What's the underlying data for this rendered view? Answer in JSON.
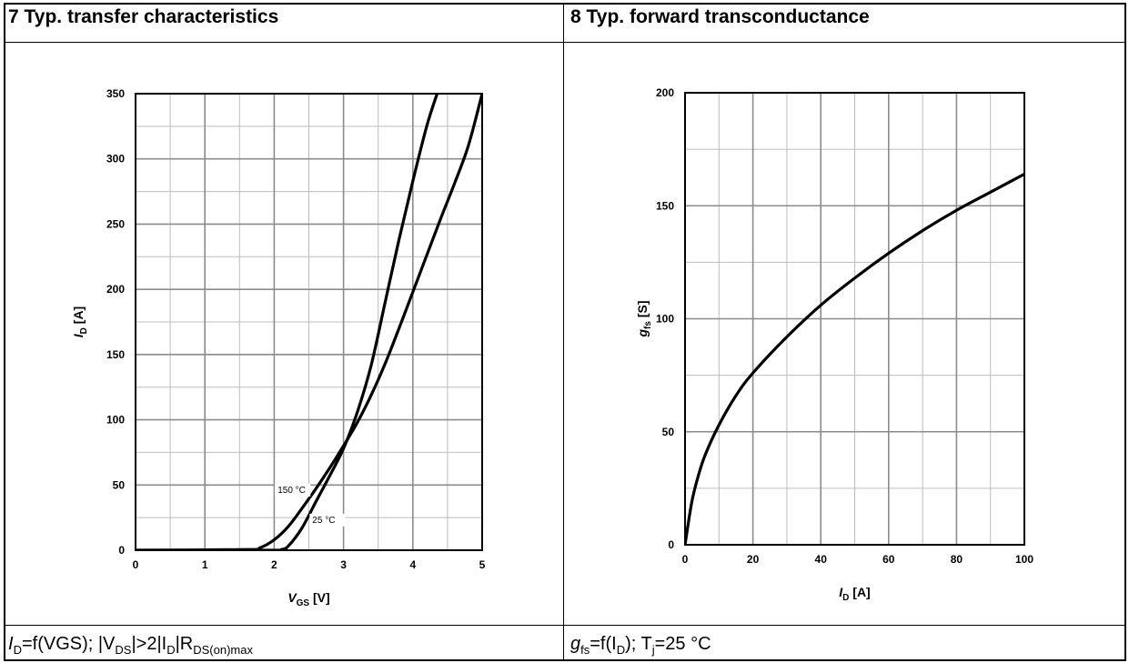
{
  "panels": {
    "left": {
      "title": "7 Typ. transfer characteristics",
      "caption": {
        "p1": "I",
        "p1_sub": "D",
        "p2": "=f(VGS); |V",
        "p2_sub": "DS",
        "p3": "|>2|I",
        "p3_sub": "D",
        "p4": "|R",
        "p4_sub": "DS(on)max"
      }
    },
    "right": {
      "title": "8 Typ. forward transconductance",
      "caption": {
        "p1": "g",
        "p1_sub": "fs",
        "p2": "=f(I",
        "p2_sub": "D",
        "p3": ");  T",
        "p3_sub": "j",
        "p4": "=25 °C"
      }
    }
  },
  "chart_data": [
    {
      "type": "line",
      "xlabel": {
        "main": "V",
        "sub": "GS",
        "unit": " [V]"
      },
      "ylabel": {
        "main": "I",
        "sub": "D",
        "unit": " [A]"
      },
      "xlim": [
        0,
        5
      ],
      "ylim": [
        0,
        350
      ],
      "xticks": [
        0,
        1,
        2,
        3,
        4,
        5
      ],
      "yticks": [
        0,
        50,
        100,
        150,
        200,
        250,
        300,
        350
      ],
      "grid": true,
      "series": [
        {
          "name": "150 °C",
          "x": [
            0,
            1.6,
            1.8,
            2.0,
            2.2,
            2.4,
            2.6,
            2.8,
            3.0,
            3.2,
            3.4,
            3.6,
            3.8,
            4.0,
            4.2,
            4.4,
            4.6,
            4.8,
            5.0
          ],
          "y": [
            0,
            0.5,
            2,
            8,
            18,
            32,
            47,
            63,
            80,
            98,
            119,
            143,
            170,
            198,
            226,
            254,
            281,
            310,
            350
          ]
        },
        {
          "name": "25 °C",
          "x": [
            0,
            2.0,
            2.1,
            2.2,
            2.4,
            2.6,
            2.8,
            3.0,
            3.2,
            3.4,
            3.6,
            3.8,
            4.0,
            4.2,
            4.35
          ],
          "y": [
            0,
            0,
            0.5,
            3,
            17,
            37,
            57,
            78,
            106,
            142,
            190,
            238,
            283,
            325,
            350
          ]
        }
      ]
    },
    {
      "type": "line",
      "xlabel": {
        "main": "I",
        "sub": "D",
        "unit": " [A]"
      },
      "ylabel": {
        "main": "g",
        "sub": "fs",
        "unit": " [S]"
      },
      "xlim": [
        0,
        100
      ],
      "ylim": [
        0,
        200
      ],
      "xticks": [
        0,
        20,
        40,
        60,
        80,
        100
      ],
      "yticks": [
        0,
        50,
        100,
        150,
        200
      ],
      "grid": true,
      "series": [
        {
          "name": "",
          "x": [
            0,
            2,
            4,
            6,
            10,
            15,
            20,
            30,
            40,
            50,
            60,
            70,
            80,
            90,
            100
          ],
          "y": [
            0,
            19,
            31,
            40,
            53,
            66,
            76,
            92,
            106,
            118,
            129,
            139,
            148,
            156,
            164
          ]
        }
      ]
    }
  ]
}
